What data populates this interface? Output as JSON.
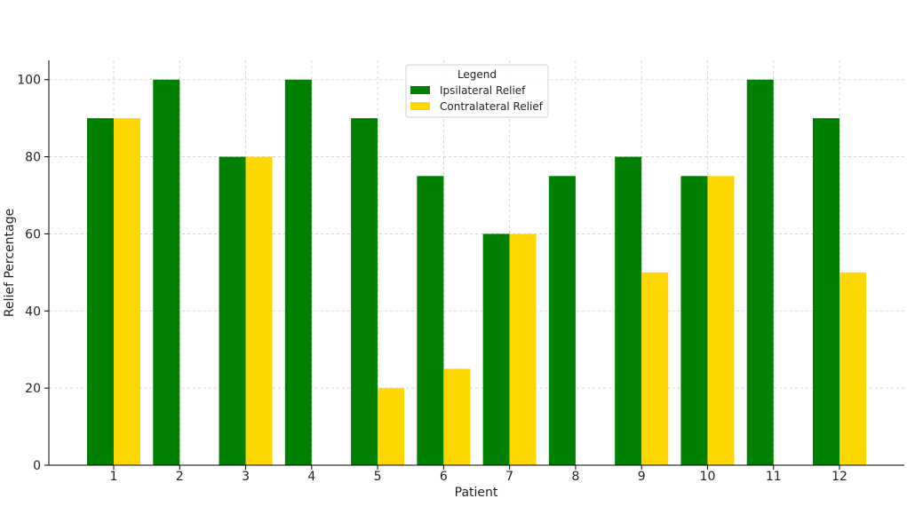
{
  "chart_data": {
    "type": "bar",
    "title": "",
    "xlabel": "Patient",
    "ylabel": "Relief Percentage",
    "categories": [
      "1",
      "2",
      "3",
      "4",
      "5",
      "6",
      "7",
      "8",
      "9",
      "10",
      "11",
      "12"
    ],
    "series": [
      {
        "name": "Ipsilateral Relief",
        "color": "#008000",
        "values": [
          90,
          100,
          80,
          100,
          90,
          75,
          60,
          75,
          80,
          75,
          100,
          90
        ]
      },
      {
        "name": "Contralateral Relief",
        "color": "#FFD700",
        "values": [
          90,
          0,
          80,
          0,
          20,
          25,
          60,
          0,
          50,
          75,
          0,
          50
        ]
      }
    ],
    "ylim": [
      0,
      105
    ],
    "yticks": [
      0,
      20,
      40,
      60,
      80,
      100
    ],
    "grid": true,
    "legend": {
      "title": "Legend",
      "placement": "top-center"
    }
  }
}
